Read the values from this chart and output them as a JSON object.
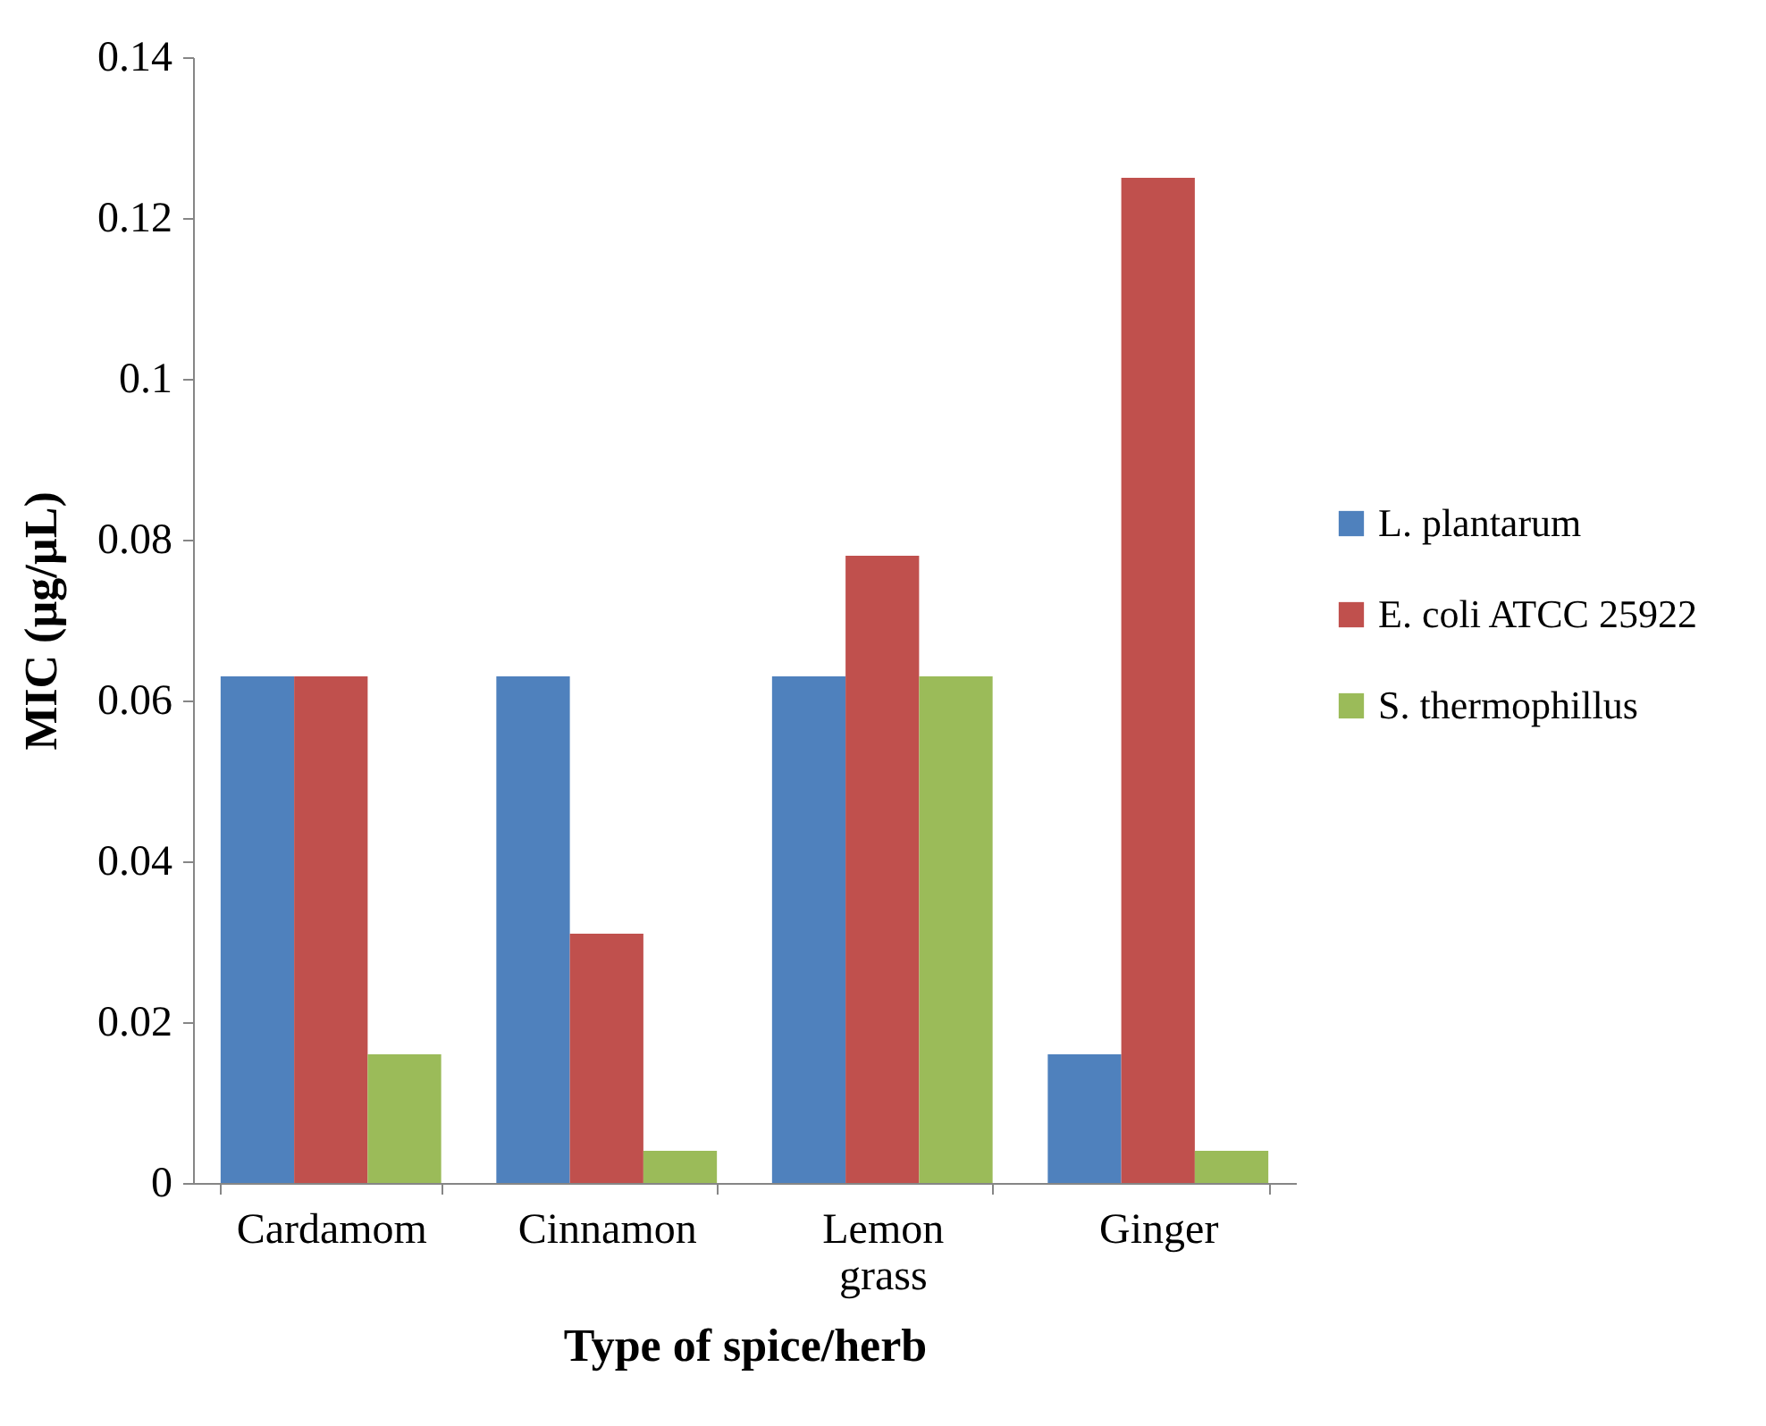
{
  "chart_data": {
    "type": "bar",
    "xlabel": "Type of spice/herb",
    "ylabel": "MIC (µg/µL)",
    "categories": [
      "Cardamom",
      "Cinnamon",
      "Lemon grass",
      "Ginger"
    ],
    "series": [
      {
        "name": "L. plantarum",
        "color": "#4f81bd",
        "values": [
          0.063,
          0.063,
          0.063,
          0.016
        ]
      },
      {
        "name": "E. coli ATCC 25922",
        "color": "#c0504d",
        "values": [
          0.063,
          0.031,
          0.078,
          0.125
        ]
      },
      {
        "name": "S. thermophillus",
        "color": "#9bbb59",
        "values": [
          0.016,
          0.004,
          0.063,
          0.004
        ]
      }
    ],
    "ylim": [
      0,
      0.14
    ],
    "yticks": [
      0,
      0.02,
      0.04,
      0.06,
      0.08,
      0.1,
      0.12,
      0.14
    ],
    "grid": false,
    "legend": "right"
  }
}
